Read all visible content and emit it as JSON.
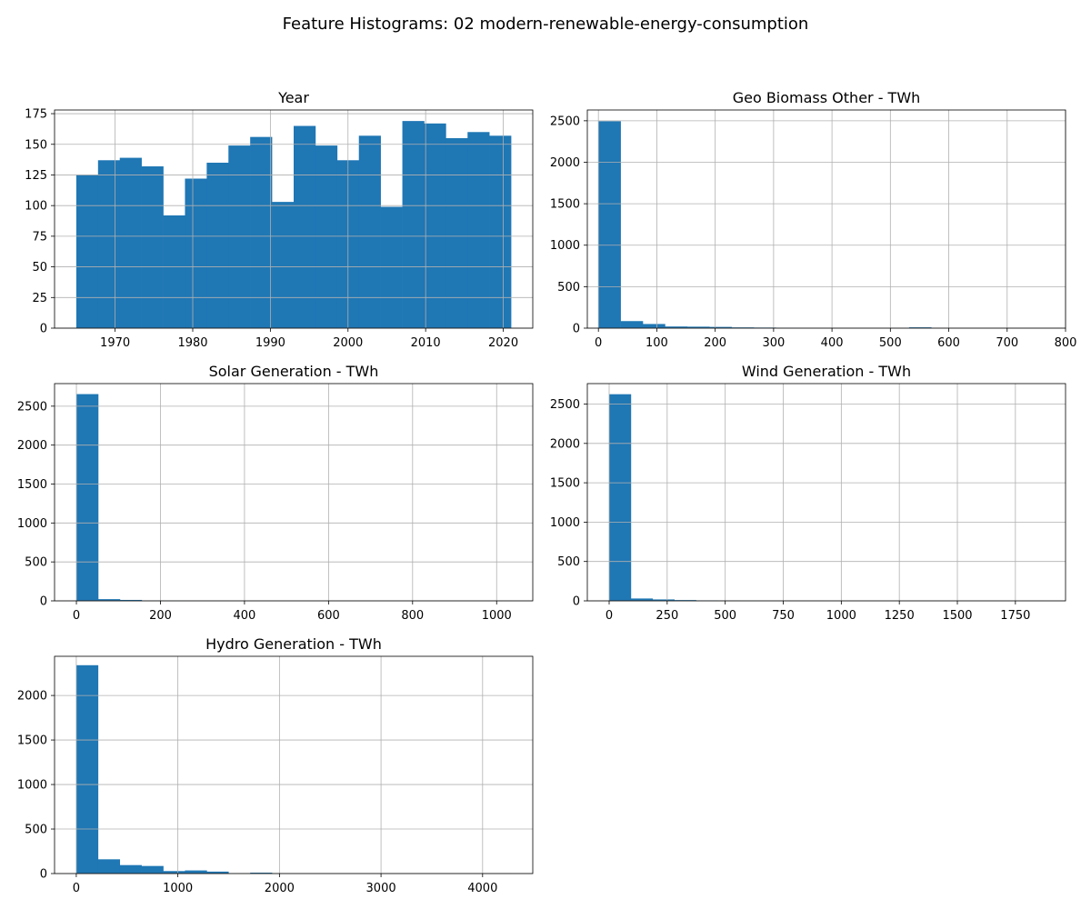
{
  "suptitle": "Feature Histograms: 02 modern-renewable-energy-consumption",
  "colors": {
    "bar": "#1f77b4",
    "grid": "#b0b0b0",
    "axis": "#000000"
  },
  "chart_data": [
    {
      "type": "bar",
      "title": "Year",
      "xlabel": "",
      "ylabel": "",
      "grid": true,
      "xlim": [
        1962.2,
        2023.8
      ],
      "ylim": [
        0,
        178
      ],
      "xticks": [
        1970,
        1980,
        1990,
        2000,
        2010,
        2020
      ],
      "yticks": [
        0,
        25,
        50,
        75,
        100,
        125,
        150,
        175
      ],
      "bin_start": 1965,
      "bin_width": 2.8,
      "counts": [
        125,
        137,
        139,
        132,
        92,
        122,
        135,
        149,
        156,
        103,
        165,
        149,
        137,
        157,
        99,
        169,
        167,
        155,
        160,
        157
      ]
    },
    {
      "type": "bar",
      "title": "Geo Biomass Other - TWh",
      "xlabel": "",
      "ylabel": "",
      "grid": true,
      "xlim": [
        -19,
        800
      ],
      "ylim": [
        0,
        2630
      ],
      "xticks": [
        0,
        100,
        200,
        300,
        400,
        500,
        600,
        700,
        800
      ],
      "yticks": [
        0,
        500,
        1000,
        1500,
        2000,
        2500
      ],
      "bin_start": 0,
      "bin_width": 38,
      "counts": [
        2495,
        85,
        50,
        20,
        18,
        15,
        9,
        7,
        5,
        2,
        1,
        1,
        1,
        0,
        10,
        1,
        1,
        1,
        1,
        1
      ]
    },
    {
      "type": "bar",
      "title": "Solar Generation - TWh",
      "xlabel": "",
      "ylabel": "",
      "grid": true,
      "xlim": [
        -52,
        1086
      ],
      "ylim": [
        0,
        2790
      ],
      "xticks": [
        0,
        200,
        400,
        600,
        800,
        1000
      ],
      "yticks": [
        0,
        500,
        1000,
        1500,
        2000,
        2500
      ],
      "bin_start": 0,
      "bin_width": 51.8,
      "counts": [
        2655,
        22,
        12,
        5,
        2,
        1,
        1,
        0,
        0,
        0,
        0,
        0,
        0,
        0,
        0,
        0,
        0,
        0,
        0,
        1
      ]
    },
    {
      "type": "bar",
      "title": "Wind Generation - TWh",
      "xlabel": "",
      "ylabel": "",
      "grid": true,
      "xlim": [
        -94,
        1966
      ],
      "ylim": [
        0,
        2760
      ],
      "xticks": [
        0,
        250,
        500,
        750,
        1000,
        1250,
        1500,
        1750
      ],
      "yticks": [
        0,
        500,
        1000,
        1500,
        2000,
        2500
      ],
      "bin_start": 0,
      "bin_width": 93.6,
      "counts": [
        2625,
        30,
        18,
        10,
        6,
        4,
        2,
        1,
        1,
        1,
        0,
        0,
        0,
        0,
        0,
        0,
        0,
        0,
        0,
        1
      ]
    },
    {
      "type": "bar",
      "title": "Hydro Generation - TWh",
      "xlabel": "",
      "ylabel": "",
      "grid": true,
      "xlim": [
        -214,
        4494
      ],
      "ylim": [
        0,
        2440
      ],
      "xticks": [
        0,
        1000,
        2000,
        3000,
        4000
      ],
      "yticks": [
        0,
        500,
        1000,
        1500,
        2000
      ],
      "bin_start": 0,
      "bin_width": 214,
      "counts": [
        2340,
        160,
        95,
        85,
        28,
        35,
        22,
        3,
        10,
        2,
        2,
        1,
        1,
        1,
        1,
        1,
        1,
        1,
        1,
        1
      ]
    }
  ]
}
